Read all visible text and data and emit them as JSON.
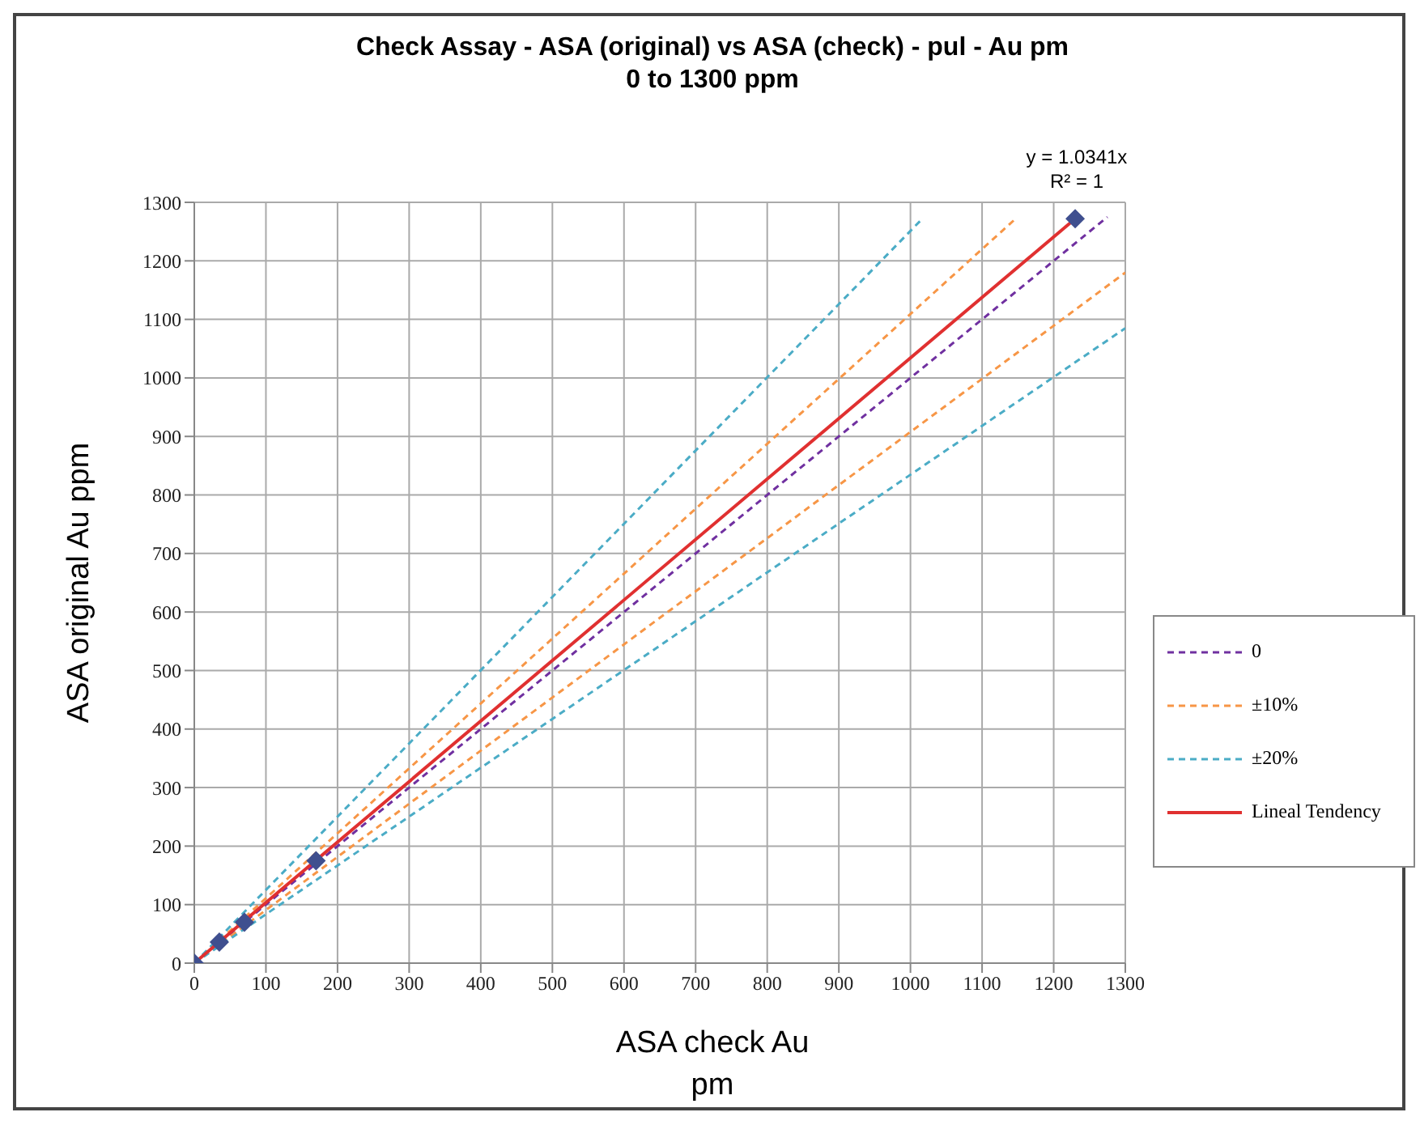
{
  "chart_data": {
    "type": "line",
    "title": "Check Assay - ASA (original) vs ASA (check) - pul - Au pm",
    "subtitle": "0 to 1300 ppm",
    "xlabel": "ASA check Au pm",
    "ylabel": "ASA original Au ppm",
    "xlim": [
      0,
      1300
    ],
    "xticks": [
      0,
      100,
      200,
      300,
      400,
      500,
      600,
      700,
      800,
      900,
      1000,
      1100,
      1200,
      1300
    ],
    "ylim": [
      0,
      1300
    ],
    "yticks": [
      0,
      100,
      200,
      300,
      400,
      500,
      600,
      700,
      800,
      900,
      1000,
      1100,
      1200,
      1300
    ],
    "grid": true,
    "legend": "right",
    "annotations": [
      "y = 1.0341x",
      "R² = 1"
    ],
    "series": [
      {
        "name": "0",
        "color": "#7030a0",
        "line_style": "dashed",
        "marker": "none",
        "x": [
          0,
          1275
        ],
        "values": [
          0,
          1275
        ]
      },
      {
        "name": "±10%",
        "color": "#f79646",
        "line_style": "dashed",
        "marker": "none",
        "x": [
          0,
          1145
        ],
        "values": [
          0,
          1270
        ]
      },
      {
        "color": "#f79646",
        "line_style": "dashed",
        "marker": "none",
        "x": [
          0,
          1300
        ],
        "values": [
          0,
          1180
        ]
      },
      {
        "name": "±20%",
        "color": "#4bacc6",
        "line_style": "dashed",
        "marker": "none",
        "x": [
          0,
          1015
        ],
        "values": [
          0,
          1270
        ]
      },
      {
        "color": "#4bacc6",
        "line_style": "dashed",
        "marker": "none",
        "x": [
          0,
          1300
        ],
        "values": [
          0,
          1085
        ]
      },
      {
        "name": "Lineal Tendency",
        "color": "#e03030",
        "line_style": "solid",
        "marker": "none",
        "x": [
          0,
          1230
        ],
        "values": [
          0,
          1272
        ]
      },
      {
        "type": "scatter",
        "color": "#3f4f8f",
        "marker": "diamond",
        "x": [
          0,
          35,
          70,
          170,
          1230
        ],
        "values": [
          0,
          36,
          70,
          175,
          1272
        ]
      }
    ]
  }
}
